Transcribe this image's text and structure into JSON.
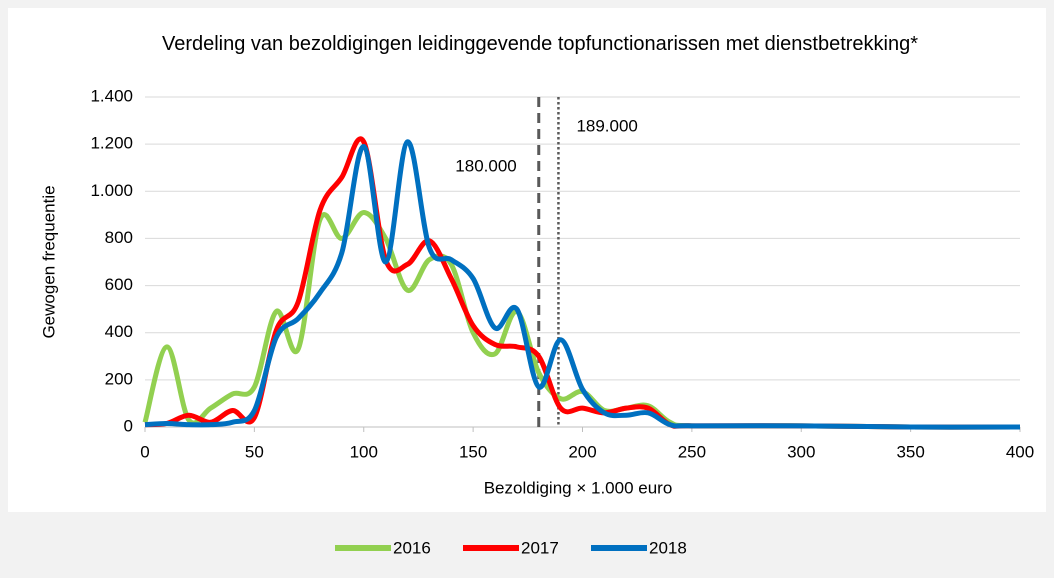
{
  "chart_data": {
    "type": "line",
    "title": "Verdeling van bezoldigingen leidinggevende topfunctionarissen met dienstbetrekking*",
    "xlabel": "Bezoldiging × 1.000 euro",
    "ylabel": "Gewogen frequentie",
    "x": [
      0,
      10,
      20,
      30,
      40,
      50,
      60,
      70,
      80,
      90,
      100,
      110,
      120,
      130,
      140,
      150,
      160,
      170,
      180,
      190,
      200,
      210,
      220,
      230,
      240,
      250,
      300,
      350,
      400
    ],
    "series": [
      {
        "name": "2016",
        "color": "#92d050",
        "values": [
          20,
          340,
          30,
          80,
          140,
          170,
          490,
          330,
          880,
          800,
          910,
          800,
          580,
          710,
          690,
          400,
          310,
          490,
          230,
          120,
          150,
          70,
          80,
          90,
          20,
          5,
          5,
          0,
          0
        ]
      },
      {
        "name": "2017",
        "color": "#ff0000",
        "values": [
          10,
          15,
          50,
          20,
          70,
          40,
          410,
          530,
          920,
          1060,
          1210,
          710,
          690,
          790,
          630,
          430,
          350,
          340,
          300,
          80,
          80,
          60,
          80,
          80,
          10,
          5,
          5,
          0,
          0
        ]
      },
      {
        "name": "2018",
        "color": "#0070c0",
        "values": [
          10,
          15,
          10,
          10,
          20,
          70,
          380,
          460,
          570,
          740,
          1190,
          700,
          1210,
          760,
          710,
          630,
          420,
          500,
          170,
          370,
          160,
          60,
          50,
          60,
          10,
          5,
          5,
          0,
          0
        ]
      }
    ],
    "xlim": [
      0,
      400
    ],
    "xticks": [
      0,
      50,
      100,
      150,
      200,
      250,
      300,
      350,
      400
    ],
    "ylim": [
      0,
      1400
    ],
    "yticks": [
      0,
      {
        "value": 200,
        "label": "200"
      },
      {
        "value": 400,
        "label": "400"
      },
      {
        "value": 600,
        "label": "600"
      },
      {
        "value": 800,
        "label": "800"
      },
      {
        "value": 1000,
        "label": "1.000"
      },
      {
        "value": 1200,
        "label": "1.200"
      },
      {
        "value": 1400,
        "label": "1.400"
      }
    ],
    "grid": true,
    "legend": "bottom",
    "annotations": [
      {
        "x": 180,
        "style": "dashed",
        "label": "180.000"
      },
      {
        "x": 189,
        "style": "dotted",
        "label": "189.000"
      }
    ]
  }
}
